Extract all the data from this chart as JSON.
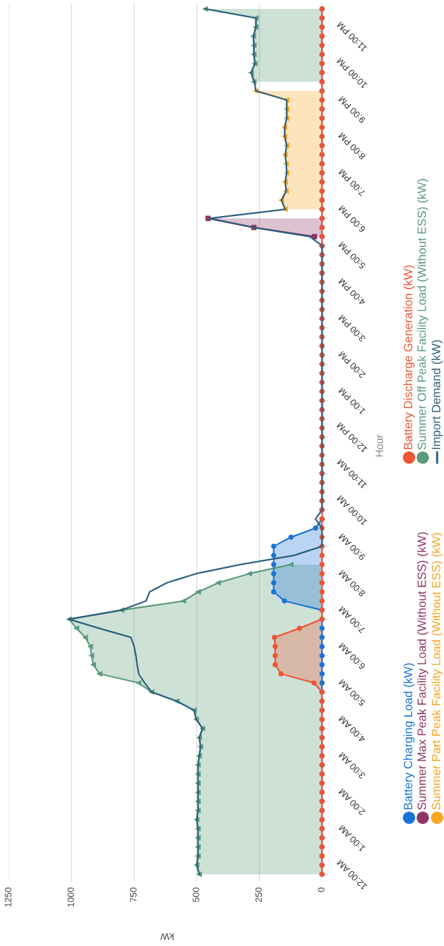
{
  "chart_data": {
    "type": "area",
    "orientation": "horizontal",
    "ylabel": "Hour",
    "xlabel": "kW",
    "x": [
      0,
      0.25,
      0.5,
      0.75,
      1,
      1.25,
      1.5,
      1.75,
      2,
      2.25,
      2.5,
      2.75,
      3,
      3.25,
      3.5,
      3.75,
      4,
      4.25,
      4.5,
      4.75,
      5,
      5.25,
      5.5,
      5.75,
      6,
      6.25,
      6.5,
      6.75,
      7,
      7.25,
      7.5,
      7.75,
      8,
      8.25,
      8.5,
      8.75,
      9,
      9.25,
      9.5,
      9.75,
      10,
      10.25,
      10.5,
      10.75,
      11,
      11.25,
      11.5,
      11.75,
      12,
      12.25,
      12.5,
      12.75,
      13,
      13.25,
      13.5,
      13.75,
      14,
      14.25,
      14.5,
      14.75,
      15,
      15.25,
      15.5,
      15.75,
      16,
      16.25,
      16.5,
      16.75,
      17,
      17.25,
      17.5,
      17.75,
      18,
      18.25,
      18.5,
      18.75,
      19,
      19.25,
      19.5,
      19.75,
      20,
      20.25,
      20.5,
      20.75,
      21,
      21.25,
      21.5,
      21.75,
      22,
      22.25,
      22.5,
      22.75,
      23,
      23.25,
      23.5,
      23.75
    ],
    "ylim": [
      -0.2,
      23.9
    ],
    "yticks": [
      {
        "value": 0,
        "label": "12:00 AM"
      },
      {
        "value": 1,
        "label": "1:00 AM"
      },
      {
        "value": 2,
        "label": "2:00 AM"
      },
      {
        "value": 3,
        "label": "3:00 AM"
      },
      {
        "value": 4,
        "label": "4:00 AM"
      },
      {
        "value": 5,
        "label": "5:00 AM"
      },
      {
        "value": 6,
        "label": "6:00 AM"
      },
      {
        "value": 7,
        "label": "7:00 AM"
      },
      {
        "value": 8,
        "label": "8:00 AM"
      },
      {
        "value": 9,
        "label": "9:00 AM"
      },
      {
        "value": 10,
        "label": "10:00 AM"
      },
      {
        "value": 11,
        "label": "11:00 AM"
      },
      {
        "value": 12,
        "label": "12:00 PM"
      },
      {
        "value": 13,
        "label": "1:00 PM"
      },
      {
        "value": 14,
        "label": "2:00 PM"
      },
      {
        "value": 15,
        "label": "3:00 PM"
      },
      {
        "value": 16,
        "label": "4:00 PM"
      },
      {
        "value": 17,
        "label": "5:00 PM"
      },
      {
        "value": 18,
        "label": "6:00 PM"
      },
      {
        "value": 19,
        "label": "7:00 PM"
      },
      {
        "value": 20,
        "label": "8:00 PM"
      },
      {
        "value": 21,
        "label": "9:00 PM"
      },
      {
        "value": 22,
        "label": "10:00 PM"
      },
      {
        "value": 23,
        "label": "11:00 PM"
      }
    ],
    "xlim": [
      1250,
      0
    ],
    "xticks": [
      0,
      250,
      500,
      750,
      1000,
      1250
    ],
    "grid": "x",
    "legend": "bottom",
    "series": [
      {
        "name": "Summer Off Peak Facility Load (Without ESS) (kW)",
        "marker": "triangle",
        "color": "#5b9a7c",
        "values": [
          490,
          500,
          495,
          495,
          495,
          495,
          500,
          495,
          495,
          495,
          495,
          495,
          495,
          490,
          485,
          490,
          477,
          502,
          511,
          580,
          680,
          732,
          888,
          913,
          920,
          925,
          945,
          980,
          1010,
          800,
          553,
          494,
          414,
          290,
          124,
          null,
          null,
          null,
          null,
          null,
          null,
          null,
          null,
          null,
          null,
          null,
          null,
          null,
          null,
          null,
          null,
          null,
          null,
          null,
          null,
          null,
          null,
          null,
          null,
          null,
          null,
          null,
          null,
          null,
          null,
          null,
          null,
          null,
          null,
          null,
          null,
          null,
          null,
          null,
          null,
          null,
          null,
          null,
          null,
          null,
          null,
          null,
          null,
          null,
          null,
          null,
          null,
          272,
          283,
          268,
          272,
          272,
          274,
          264,
          264,
          466
        ]
      },
      {
        "name": "Summer Max Peak Facility Load (Without ESS) (kW)",
        "marker": "square",
        "color": "#8e3563",
        "values": [
          null,
          null,
          null,
          null,
          null,
          null,
          null,
          null,
          null,
          null,
          null,
          null,
          null,
          null,
          null,
          null,
          null,
          null,
          null,
          null,
          null,
          null,
          null,
          null,
          null,
          null,
          null,
          null,
          null,
          null,
          null,
          null,
          null,
          null,
          null,
          null,
          null,
          null,
          null,
          null,
          null,
          null,
          null,
          null,
          null,
          null,
          null,
          null,
          null,
          null,
          null,
          null,
          null,
          null,
          null,
          null,
          null,
          null,
          null,
          null,
          null,
          null,
          null,
          null,
          null,
          null,
          null,
          null,
          null,
          null,
          30,
          272,
          455,
          null,
          null,
          null,
          null,
          null,
          null,
          null,
          null,
          null,
          null,
          null,
          null,
          null,
          null,
          null,
          null,
          null,
          null,
          null,
          null,
          null,
          null,
          null
        ]
      },
      {
        "name": "Summer Part Peak Facility Load (Without ESS) (kW)",
        "marker": "triangle",
        "color": "#f5a623",
        "values": [
          null,
          null,
          null,
          null,
          null,
          null,
          null,
          null,
          null,
          null,
          null,
          null,
          null,
          null,
          null,
          null,
          null,
          null,
          null,
          null,
          null,
          null,
          null,
          null,
          null,
          null,
          null,
          null,
          null,
          null,
          null,
          null,
          null,
          null,
          null,
          null,
          null,
          null,
          null,
          null,
          null,
          null,
          null,
          null,
          null,
          null,
          null,
          null,
          null,
          null,
          null,
          null,
          null,
          null,
          null,
          null,
          null,
          null,
          null,
          null,
          null,
          null,
          null,
          null,
          null,
          null,
          null,
          null,
          null,
          null,
          null,
          null,
          null,
          147,
          162,
          143,
          147,
          141,
          143,
          147,
          141,
          149,
          149,
          141,
          141,
          141,
          264,
          null,
          null,
          null,
          null,
          null,
          null,
          null,
          null,
          null
        ]
      },
      {
        "name": "Battery Charging Load (kW)",
        "marker": "circle",
        "color": "#1a73d9",
        "values": [
          0,
          0,
          0,
          0,
          0,
          0,
          0,
          0,
          0,
          0,
          0,
          0,
          0,
          0,
          0,
          0,
          0,
          0,
          0,
          0,
          0,
          0,
          0,
          0,
          0,
          0,
          0,
          0,
          0,
          0,
          150,
          193,
          193,
          193,
          193,
          193,
          193,
          124,
          26,
          0,
          0,
          0,
          0,
          0,
          0,
          0,
          0,
          0,
          0,
          0,
          0,
          0,
          0,
          0,
          0,
          0,
          0,
          0,
          0,
          0,
          0,
          0,
          0,
          0,
          0,
          0,
          0,
          0,
          0,
          0,
          0,
          0,
          0,
          0,
          0,
          0,
          0,
          0,
          0,
          0,
          0,
          0,
          0,
          0,
          0,
          0,
          0,
          0,
          0,
          0,
          0,
          0,
          0,
          0,
          0,
          0
        ]
      },
      {
        "name": "Battery Discharge Generation (kW)",
        "marker": "circle",
        "color": "#ee5533",
        "values": [
          0,
          0,
          0,
          0,
          0,
          0,
          0,
          0,
          0,
          0,
          0,
          0,
          0,
          0,
          0,
          0,
          0,
          0,
          0,
          0,
          0,
          32,
          164,
          187,
          187,
          187,
          190,
          90,
          0,
          0,
          0,
          0,
          0,
          0,
          0,
          0,
          0,
          0,
          0,
          0,
          0,
          0,
          0,
          0,
          0,
          0,
          0,
          0,
          0,
          0,
          0,
          0,
          0,
          0,
          0,
          0,
          0,
          0,
          0,
          0,
          0,
          0,
          0,
          0,
          0,
          0,
          0,
          0,
          0,
          0,
          0,
          0,
          0,
          0,
          0,
          0,
          0,
          0,
          0,
          0,
          0,
          0,
          0,
          0,
          0,
          0,
          0,
          0,
          0,
          0,
          0,
          0,
          0,
          0,
          0,
          0
        ]
      },
      {
        "name": "Import Demand (kW)",
        "type": "line",
        "marker": "none",
        "color": "#2c5f7f",
        "values": [
          490,
          500,
          495,
          495,
          495,
          495,
          500,
          495,
          495,
          495,
          495,
          495,
          495,
          490,
          485,
          490,
          477,
          502,
          511,
          580,
          680,
          708,
          732,
          738,
          743,
          750,
          763,
          890,
          1010,
          800,
          703,
          688,
          619,
          502,
          325,
          112,
          0,
          0,
          0,
          26,
          0,
          0,
          0,
          0,
          0,
          0,
          0,
          0,
          0,
          0,
          0,
          0,
          0,
          0,
          0,
          0,
          0,
          0,
          0,
          0,
          0,
          0,
          0,
          0,
          0,
          0,
          0,
          0,
          0,
          0,
          49,
          272,
          450,
          147,
          162,
          143,
          147,
          141,
          143,
          147,
          141,
          149,
          149,
          141,
          141,
          141,
          264,
          270,
          283,
          268,
          272,
          272,
          274,
          264,
          264,
          466
        ]
      }
    ]
  }
}
